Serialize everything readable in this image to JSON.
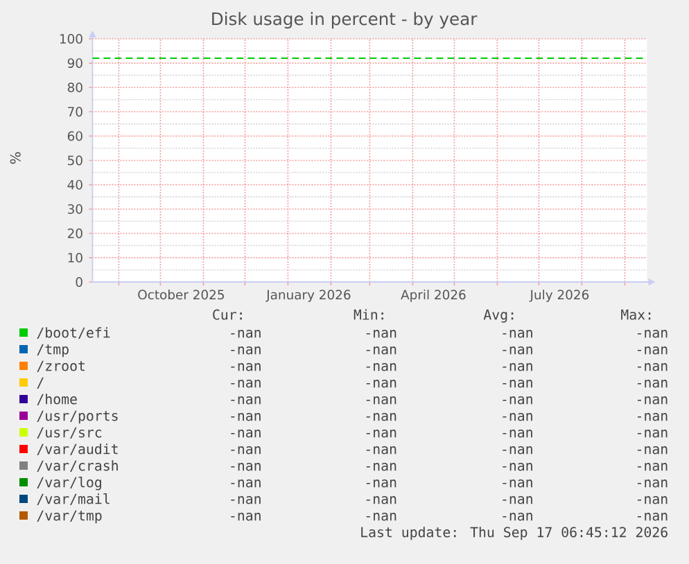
{
  "chart_data": {
    "type": "line",
    "title": "Disk usage in percent - by year",
    "ylabel": "%",
    "xlim": [
      "2025-08-13",
      "2026-09-17"
    ],
    "xticks": [
      {
        "value": "2025-09-01",
        "label": null
      },
      {
        "value": "2025-10-01",
        "label": null
      },
      {
        "value": "2025-11-01",
        "label": null
      },
      {
        "value": "2025-12-01",
        "label": null
      },
      {
        "value": "2026-01-01",
        "label": null
      },
      {
        "value": "2026-02-01",
        "label": null
      },
      {
        "value": "2026-03-01",
        "label": null
      },
      {
        "value": "2026-04-01",
        "label": null
      },
      {
        "value": "2026-05-01",
        "label": null
      },
      {
        "value": "2026-06-01",
        "label": null
      },
      {
        "value": "2026-07-01",
        "label": null
      },
      {
        "value": "2026-08-01",
        "label": null
      },
      {
        "value": "2026-09-01",
        "label": null
      },
      {
        "value": "2025-10-16",
        "label": "October 2025"
      },
      {
        "value": "2026-01-16",
        "label": "January 2026"
      },
      {
        "value": "2026-04-16",
        "label": "April 2026"
      },
      {
        "value": "2026-07-16",
        "label": "July 2026"
      }
    ],
    "ylim": [
      0,
      100
    ],
    "yticks": [
      0,
      10,
      20,
      30,
      40,
      50,
      60,
      70,
      80,
      90,
      100
    ],
    "grid": true,
    "legend": "bottom",
    "series": [
      {
        "name": "/boot/efi",
        "color": "#00cc00"
      },
      {
        "name": "/tmp",
        "color": "#0066b3"
      },
      {
        "name": "/zroot",
        "color": "#ff8000"
      },
      {
        "name": "/",
        "color": "#ffcc00"
      },
      {
        "name": "/home",
        "color": "#330099"
      },
      {
        "name": "/usr/ports",
        "color": "#990099"
      },
      {
        "name": "/usr/src",
        "color": "#ccff00"
      },
      {
        "name": "/var/audit",
        "color": "#ff0000"
      },
      {
        "name": "/var/crash",
        "color": "#808080"
      },
      {
        "name": "/var/log",
        "color": "#008f00"
      },
      {
        "name": "/var/mail",
        "color": "#00487d"
      },
      {
        "name": "/var/tmp",
        "color": "#b35a00"
      },
      {
        "color": "#00cc00",
        "line_style": "dashed",
        "x": [
          "2025-08-13",
          "2026-09-17"
        ],
        "values": [
          92,
          92
        ]
      }
    ],
    "annotations": [
      "Cur:",
      "Min:",
      "Avg:",
      "Max:",
      "-nan",
      "-nan",
      "-nan",
      "-nan",
      "-nan",
      "-nan",
      "-nan",
      "-nan",
      "-nan",
      "-nan",
      "-nan",
      "-nan",
      "-nan",
      "-nan",
      "-nan",
      "-nan",
      "-nan",
      "-nan",
      "-nan",
      "-nan",
      "-nan",
      "-nan",
      "-nan",
      "-nan",
      "-nan",
      "-nan",
      "-nan",
      "-nan",
      "-nan",
      "-nan",
      "-nan",
      "-nan",
      "-nan",
      "-nan",
      "-nan",
      "-nan",
      "-nan",
      "-nan",
      "-nan",
      "-nan",
      "-nan",
      "-nan",
      "-nan",
      "-nan",
      "-nan",
      "-nan",
      "-nan",
      "-nan",
      "Last update: Thu Sep 17 06:45:12 2026"
    ]
  }
}
